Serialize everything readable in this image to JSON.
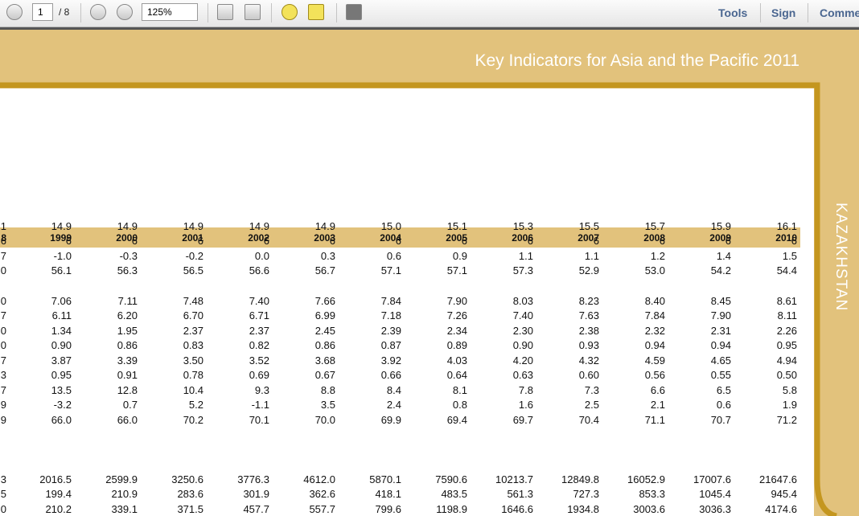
{
  "toolbar": {
    "page_number": "1",
    "page_count": "/ 8",
    "zoom": "125%",
    "tools": "Tools",
    "sign": "Sign",
    "comment": "Comme"
  },
  "document": {
    "title": "Key Indicators for Asia and the Pacific 2011",
    "side_label": "KAZAKHSTAN"
  },
  "table": {
    "header": [
      "8",
      "1999",
      "2000",
      "2001",
      "2002",
      "2003",
      "2004",
      "2005",
      "2006",
      "2007",
      "2008",
      "2009",
      "2010"
    ],
    "rows": [
      [
        "1",
        "14.9",
        "14.9",
        "14.9",
        "14.9",
        "14.9",
        "15.0",
        "15.1",
        "15.3",
        "15.5",
        "15.7",
        "15.9",
        "16.1"
      ],
      [
        "6",
        "6",
        "6",
        "6",
        "6",
        "6",
        "6",
        "6",
        "6",
        "6",
        "6",
        "6",
        "6"
      ],
      [
        "7",
        "-1.0",
        "-0.3",
        "-0.2",
        "0.0",
        "0.3",
        "0.6",
        "0.9",
        "1.1",
        "1.1",
        "1.2",
        "1.4",
        "1.5"
      ],
      [
        "0",
        "56.1",
        "56.3",
        "56.5",
        "56.6",
        "56.7",
        "57.1",
        "57.1",
        "57.3",
        "52.9",
        "53.0",
        "54.2",
        "54.4"
      ],
      [
        "0",
        "7.06",
        "7.11",
        "7.48",
        "7.40",
        "7.66",
        "7.84",
        "7.90",
        "8.03",
        "8.23",
        "8.40",
        "8.45",
        "8.61"
      ],
      [
        "7",
        "6.11",
        "6.20",
        "6.70",
        "6.71",
        "6.99",
        "7.18",
        "7.26",
        "7.40",
        "7.63",
        "7.84",
        "7.90",
        "8.11"
      ],
      [
        "0",
        "1.34",
        "1.95",
        "2.37",
        "2.37",
        "2.45",
        "2.39",
        "2.34",
        "2.30",
        "2.38",
        "2.32",
        "2.31",
        "2.26"
      ],
      [
        "0",
        "0.90",
        "0.86",
        "0.83",
        "0.82",
        "0.86",
        "0.87",
        "0.89",
        "0.90",
        "0.93",
        "0.94",
        "0.94",
        "0.95"
      ],
      [
        "7",
        "3.87",
        "3.39",
        "3.50",
        "3.52",
        "3.68",
        "3.92",
        "4.03",
        "4.20",
        "4.32",
        "4.59",
        "4.65",
        "4.94"
      ],
      [
        "3",
        "0.95",
        "0.91",
        "0.78",
        "0.69",
        "0.67",
        "0.66",
        "0.64",
        "0.63",
        "0.60",
        "0.56",
        "0.55",
        "0.50"
      ],
      [
        "7",
        "13.5",
        "12.8",
        "10.4",
        "9.3",
        "8.8",
        "8.4",
        "8.1",
        "7.8",
        "7.3",
        "6.6",
        "6.5",
        "5.8"
      ],
      [
        "9",
        "-3.2",
        "0.7",
        "5.2",
        "-1.1",
        "3.5",
        "2.4",
        "0.8",
        "1.6",
        "2.5",
        "2.1",
        "0.6",
        "1.9"
      ],
      [
        "9",
        "66.0",
        "66.0",
        "70.2",
        "70.1",
        "70.0",
        "69.9",
        "69.4",
        "69.7",
        "70.4",
        "71.1",
        "70.7",
        "71.2"
      ],
      [
        "3",
        "2016.5",
        "2599.9",
        "3250.6",
        "3776.3",
        "4612.0",
        "5870.1",
        "7590.6",
        "10213.7",
        "12849.8",
        "16052.9",
        "17007.6",
        "21647.6"
      ],
      [
        "5",
        "199.4",
        "210.9",
        "283.6",
        "301.9",
        "362.6",
        "418.1",
        "483.5",
        "561.3",
        "727.3",
        "853.3",
        "1045.4",
        "945.4"
      ],
      [
        "0",
        "210.2",
        "339.1",
        "371.5",
        "457.7",
        "557.7",
        "799.6",
        "1198.9",
        "1646.6",
        "1934.8",
        "3003.6",
        "3036.3",
        "4174.6"
      ]
    ]
  }
}
